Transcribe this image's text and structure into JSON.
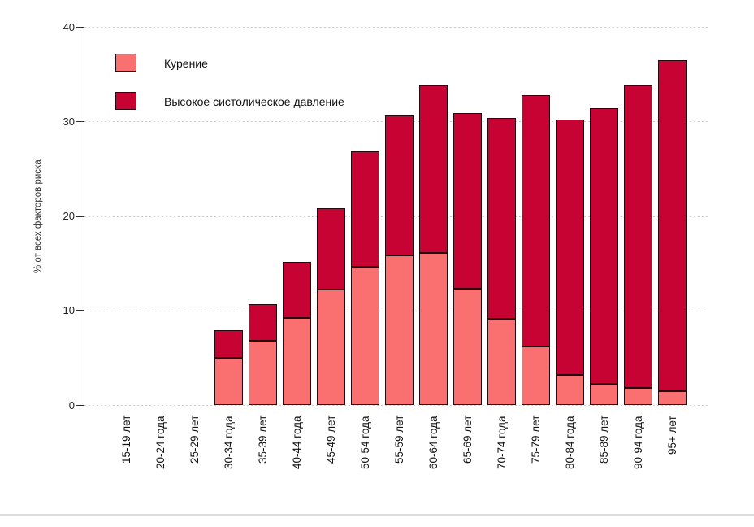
{
  "chart_data": {
    "type": "bar",
    "stacked": true,
    "title": "",
    "xlabel": "",
    "ylabel": "% от всех факторов риска",
    "ylim": [
      0,
      40
    ],
    "yticks": [
      0,
      10,
      20,
      30,
      40
    ],
    "grid": "horizontal-dotted",
    "legend_position": "top-left-inside",
    "categories": [
      "15-19 лет",
      "20-24 года",
      "25-29 лет",
      "30-34 года",
      "35-39 лет",
      "40-44 года",
      "45-49 лет",
      "50-54 года",
      "55-59 лет",
      "60-64 года",
      "65-69 лет",
      "70-74 года",
      "75-79 лет",
      "80-84 года",
      "85-89 лет",
      "90-94 года",
      "95+  лет"
    ],
    "series": [
      {
        "name": "Курение",
        "color": "#FA6F6F",
        "values": [
          0,
          0,
          0,
          5.0,
          6.8,
          9.2,
          12.2,
          14.6,
          15.8,
          16.1,
          12.3,
          9.1,
          6.2,
          3.2,
          2.2,
          1.8,
          1.5
        ]
      },
      {
        "name": "Высокое систолическое давление",
        "color": "#C70334",
        "values": [
          0,
          0,
          0,
          2.9,
          3.9,
          5.9,
          8.6,
          12.2,
          14.8,
          17.7,
          18.6,
          21.3,
          26.6,
          27.0,
          29.2,
          32.0,
          35.0
        ]
      }
    ]
  },
  "colors": {
    "background": "#ffffff",
    "bar_border": "#250a10",
    "axis": "#2f2f2f",
    "gridline": "#cdcdcd",
    "text": "#1a1a1a",
    "footer_line": "#dcdcdc"
  }
}
